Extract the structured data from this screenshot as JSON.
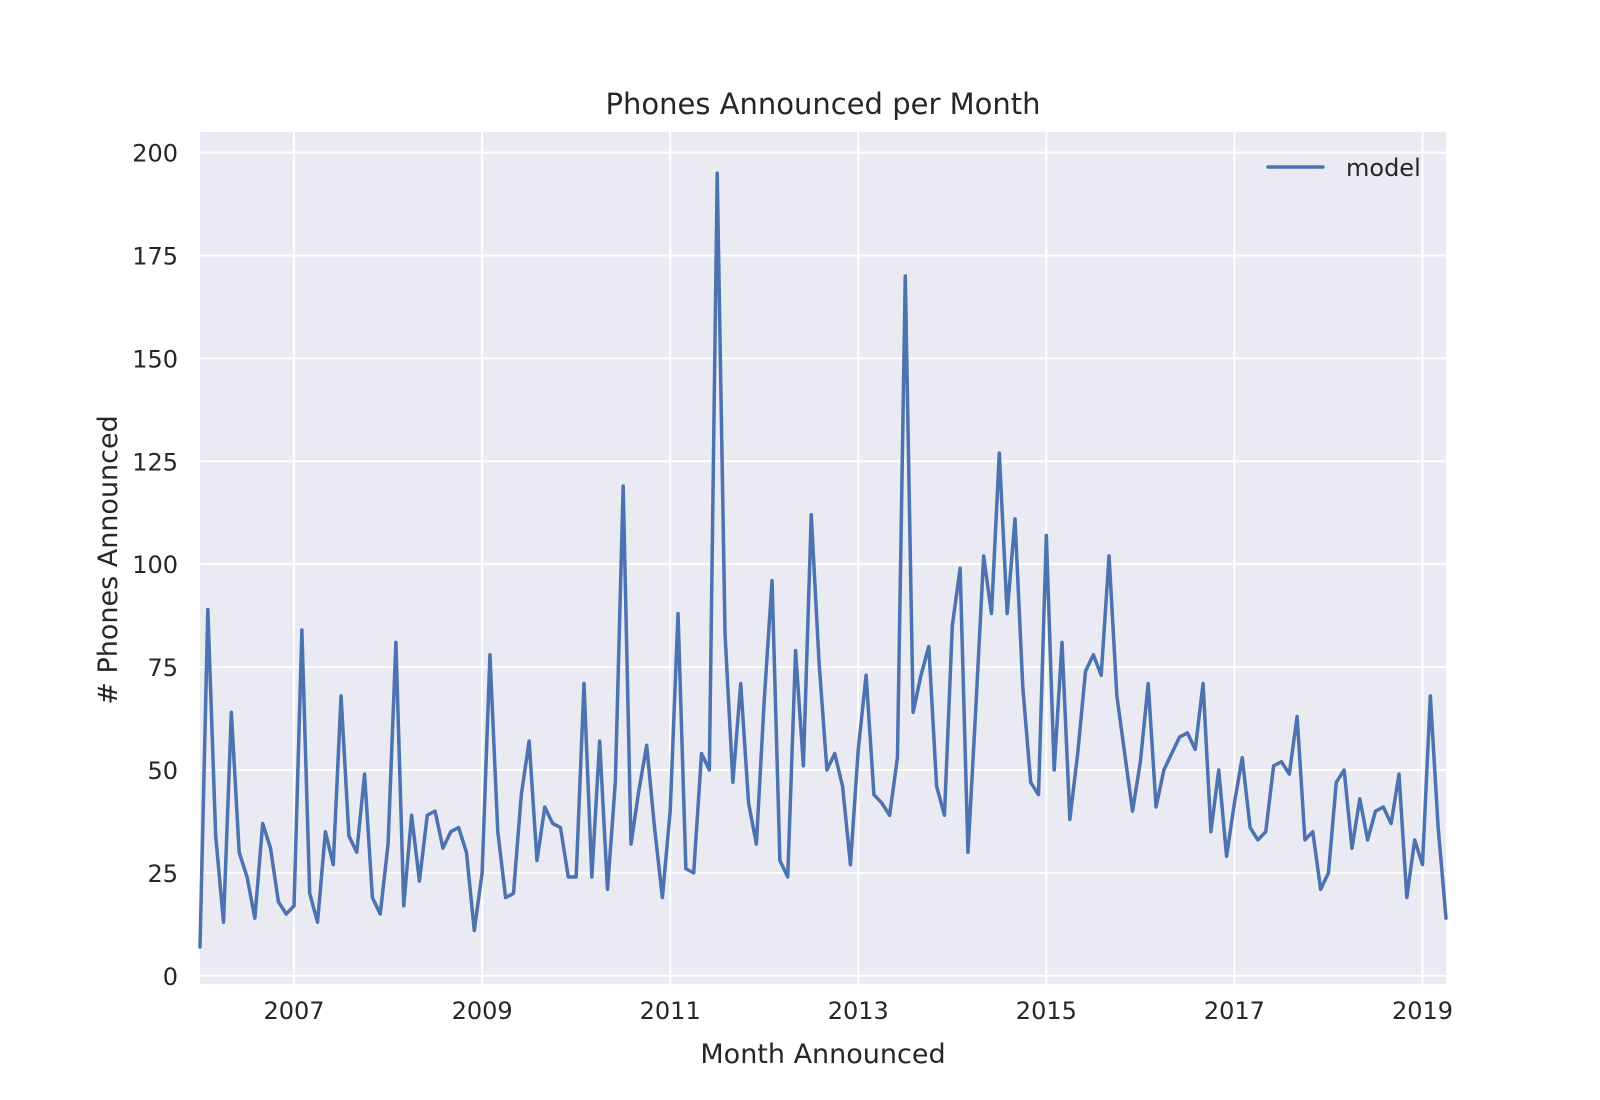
{
  "chart_data": {
    "type": "line",
    "title": "Phones Announced per Month",
    "xlabel": "Month Announced",
    "ylabel": "# Phones Announced",
    "xlim": [
      "2006-01",
      "2019-04"
    ],
    "ylim": [
      -2,
      205
    ],
    "yticks": [
      0,
      25,
      50,
      75,
      100,
      125,
      150,
      175,
      200
    ],
    "xticks": [
      "2007",
      "2009",
      "2011",
      "2013",
      "2015",
      "2017",
      "2019"
    ],
    "grid": true,
    "legend_position": "top-right",
    "series": [
      {
        "name": "model",
        "color": "#4c72b0",
        "points": [
          [
            "2006-01",
            7
          ],
          [
            "2006-02",
            89
          ],
          [
            "2006-03",
            34
          ],
          [
            "2006-04",
            13
          ],
          [
            "2006-05",
            64
          ],
          [
            "2006-06",
            30
          ],
          [
            "2006-07",
            24
          ],
          [
            "2006-08",
            14
          ],
          [
            "2006-09",
            37
          ],
          [
            "2006-10",
            31
          ],
          [
            "2006-11",
            18
          ],
          [
            "2006-12",
            15
          ],
          [
            "2007-01",
            17
          ],
          [
            "2007-02",
            84
          ],
          [
            "2007-03",
            20
          ],
          [
            "2007-04",
            13
          ],
          [
            "2007-05",
            35
          ],
          [
            "2007-06",
            27
          ],
          [
            "2007-07",
            68
          ],
          [
            "2007-08",
            34
          ],
          [
            "2007-09",
            30
          ],
          [
            "2007-10",
            49
          ],
          [
            "2007-11",
            19
          ],
          [
            "2007-12",
            15
          ],
          [
            "2008-01",
            32
          ],
          [
            "2008-02",
            81
          ],
          [
            "2008-03",
            17
          ],
          [
            "2008-04",
            39
          ],
          [
            "2008-05",
            23
          ],
          [
            "2008-06",
            39
          ],
          [
            "2008-07",
            40
          ],
          [
            "2008-08",
            31
          ],
          [
            "2008-09",
            35
          ],
          [
            "2008-10",
            36
          ],
          [
            "2008-11",
            30
          ],
          [
            "2008-12",
            11
          ],
          [
            "2009-01",
            25
          ],
          [
            "2009-02",
            78
          ],
          [
            "2009-03",
            35
          ],
          [
            "2009-04",
            19
          ],
          [
            "2009-05",
            20
          ],
          [
            "2009-06",
            44
          ],
          [
            "2009-07",
            57
          ],
          [
            "2009-08",
            28
          ],
          [
            "2009-09",
            41
          ],
          [
            "2009-10",
            37
          ],
          [
            "2009-11",
            36
          ],
          [
            "2009-12",
            24
          ],
          [
            "2010-01",
            24
          ],
          [
            "2010-02",
            71
          ],
          [
            "2010-03",
            24
          ],
          [
            "2010-04",
            57
          ],
          [
            "2010-05",
            21
          ],
          [
            "2010-06",
            47
          ],
          [
            "2010-07",
            119
          ],
          [
            "2010-08",
            32
          ],
          [
            "2010-09",
            45
          ],
          [
            "2010-10",
            56
          ],
          [
            "2010-11",
            36
          ],
          [
            "2010-12",
            19
          ],
          [
            "2011-01",
            40
          ],
          [
            "2011-02",
            88
          ],
          [
            "2011-03",
            26
          ],
          [
            "2011-04",
            25
          ],
          [
            "2011-05",
            54
          ],
          [
            "2011-06",
            50
          ],
          [
            "2011-07",
            195
          ],
          [
            "2011-08",
            83
          ],
          [
            "2011-09",
            47
          ],
          [
            "2011-10",
            71
          ],
          [
            "2011-11",
            42
          ],
          [
            "2011-12",
            32
          ],
          [
            "2012-01",
            67
          ],
          [
            "2012-02",
            96
          ],
          [
            "2012-03",
            28
          ],
          [
            "2012-04",
            24
          ],
          [
            "2012-05",
            79
          ],
          [
            "2012-06",
            51
          ],
          [
            "2012-07",
            112
          ],
          [
            "2012-08",
            76
          ],
          [
            "2012-09",
            50
          ],
          [
            "2012-10",
            54
          ],
          [
            "2012-11",
            46
          ],
          [
            "2012-12",
            27
          ],
          [
            "2013-01",
            55
          ],
          [
            "2013-02",
            73
          ],
          [
            "2013-03",
            44
          ],
          [
            "2013-04",
            42
          ],
          [
            "2013-05",
            39
          ],
          [
            "2013-06",
            53
          ],
          [
            "2013-07",
            170
          ],
          [
            "2013-08",
            64
          ],
          [
            "2013-09",
            73
          ],
          [
            "2013-10",
            80
          ],
          [
            "2013-11",
            46
          ],
          [
            "2013-12",
            39
          ],
          [
            "2014-01",
            85
          ],
          [
            "2014-02",
            99
          ],
          [
            "2014-03",
            30
          ],
          [
            "2014-04",
            65
          ],
          [
            "2014-05",
            102
          ],
          [
            "2014-06",
            88
          ],
          [
            "2014-07",
            127
          ],
          [
            "2014-08",
            88
          ],
          [
            "2014-09",
            111
          ],
          [
            "2014-10",
            70
          ],
          [
            "2014-11",
            47
          ],
          [
            "2014-12",
            44
          ],
          [
            "2015-01",
            107
          ],
          [
            "2015-02",
            50
          ],
          [
            "2015-03",
            81
          ],
          [
            "2015-04",
            38
          ],
          [
            "2015-05",
            54
          ],
          [
            "2015-06",
            74
          ],
          [
            "2015-07",
            78
          ],
          [
            "2015-08",
            73
          ],
          [
            "2015-09",
            102
          ],
          [
            "2015-10",
            68
          ],
          [
            "2015-11",
            54
          ],
          [
            "2015-12",
            40
          ],
          [
            "2016-01",
            52
          ],
          [
            "2016-02",
            71
          ],
          [
            "2016-03",
            41
          ],
          [
            "2016-04",
            50
          ],
          [
            "2016-05",
            54
          ],
          [
            "2016-06",
            58
          ],
          [
            "2016-07",
            59
          ],
          [
            "2016-08",
            55
          ],
          [
            "2016-09",
            71
          ],
          [
            "2016-10",
            35
          ],
          [
            "2016-11",
            50
          ],
          [
            "2016-12",
            29
          ],
          [
            "2017-01",
            42
          ],
          [
            "2017-02",
            53
          ],
          [
            "2017-03",
            36
          ],
          [
            "2017-04",
            33
          ],
          [
            "2017-05",
            35
          ],
          [
            "2017-06",
            51
          ],
          [
            "2017-07",
            52
          ],
          [
            "2017-08",
            49
          ],
          [
            "2017-09",
            63
          ],
          [
            "2017-10",
            33
          ],
          [
            "2017-11",
            35
          ],
          [
            "2017-12",
            21
          ],
          [
            "2018-01",
            25
          ],
          [
            "2018-02",
            47
          ],
          [
            "2018-03",
            50
          ],
          [
            "2018-04",
            31
          ],
          [
            "2018-05",
            43
          ],
          [
            "2018-06",
            33
          ],
          [
            "2018-07",
            40
          ],
          [
            "2018-08",
            41
          ],
          [
            "2018-09",
            37
          ],
          [
            "2018-10",
            49
          ],
          [
            "2018-11",
            19
          ],
          [
            "2018-12",
            33
          ],
          [
            "2019-01",
            27
          ],
          [
            "2019-02",
            68
          ],
          [
            "2019-03",
            36
          ],
          [
            "2019-04",
            14
          ]
        ]
      }
    ]
  }
}
